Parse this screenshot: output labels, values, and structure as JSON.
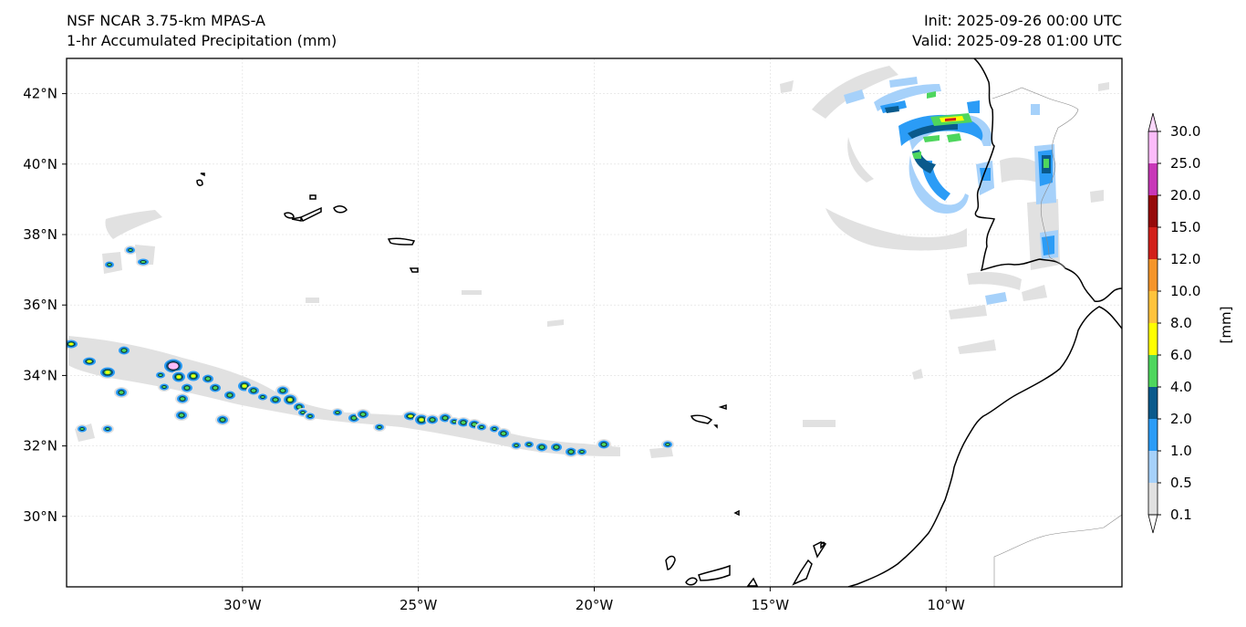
{
  "header": {
    "model": "NSF NCAR 3.75-km MPAS-A",
    "field": "1-hr Accumulated Precipitation (mm)",
    "init": "Init: 2025-09-26 00:00 UTC",
    "valid": "Valid: 2025-09-28 01:00 UTC"
  },
  "map": {
    "lon_range": [
      -35,
      -5
    ],
    "lat_range": [
      28,
      43
    ],
    "lat_ticks": [
      {
        "value": 42,
        "label": "42°N"
      },
      {
        "value": 40,
        "label": "40°N"
      },
      {
        "value": 38,
        "label": "38°N"
      },
      {
        "value": 36,
        "label": "36°N"
      },
      {
        "value": 34,
        "label": "34°N"
      },
      {
        "value": 32,
        "label": "32°N"
      },
      {
        "value": 30,
        "label": "30°N"
      }
    ],
    "lon_ticks": [
      {
        "value": -30,
        "label": "30°W"
      },
      {
        "value": -25,
        "label": "25°W"
      },
      {
        "value": -20,
        "label": "20°W"
      },
      {
        "value": -15,
        "label": "15°W"
      },
      {
        "value": -10,
        "label": "10°W"
      }
    ]
  },
  "colorbar": {
    "unit_label": "[mm]",
    "levels": [
      "0.1",
      "0.5",
      "1.0",
      "2.0",
      "4.0",
      "6.0",
      "8.0",
      "10.0",
      "12.0",
      "15.0",
      "20.0",
      "25.0",
      "30.0"
    ],
    "colors": [
      "#e1e1e1",
      "#a6d1fa",
      "#2b9cf6",
      "#0a5a8c",
      "#4ed65d",
      "#ffff00",
      "#ffc33c",
      "#f5952a",
      "#d2201a",
      "#960a0a",
      "#c837b8",
      "#fcbcfa"
    ],
    "under_color": "#ffffff",
    "over_color": "#fcd7fc"
  }
}
